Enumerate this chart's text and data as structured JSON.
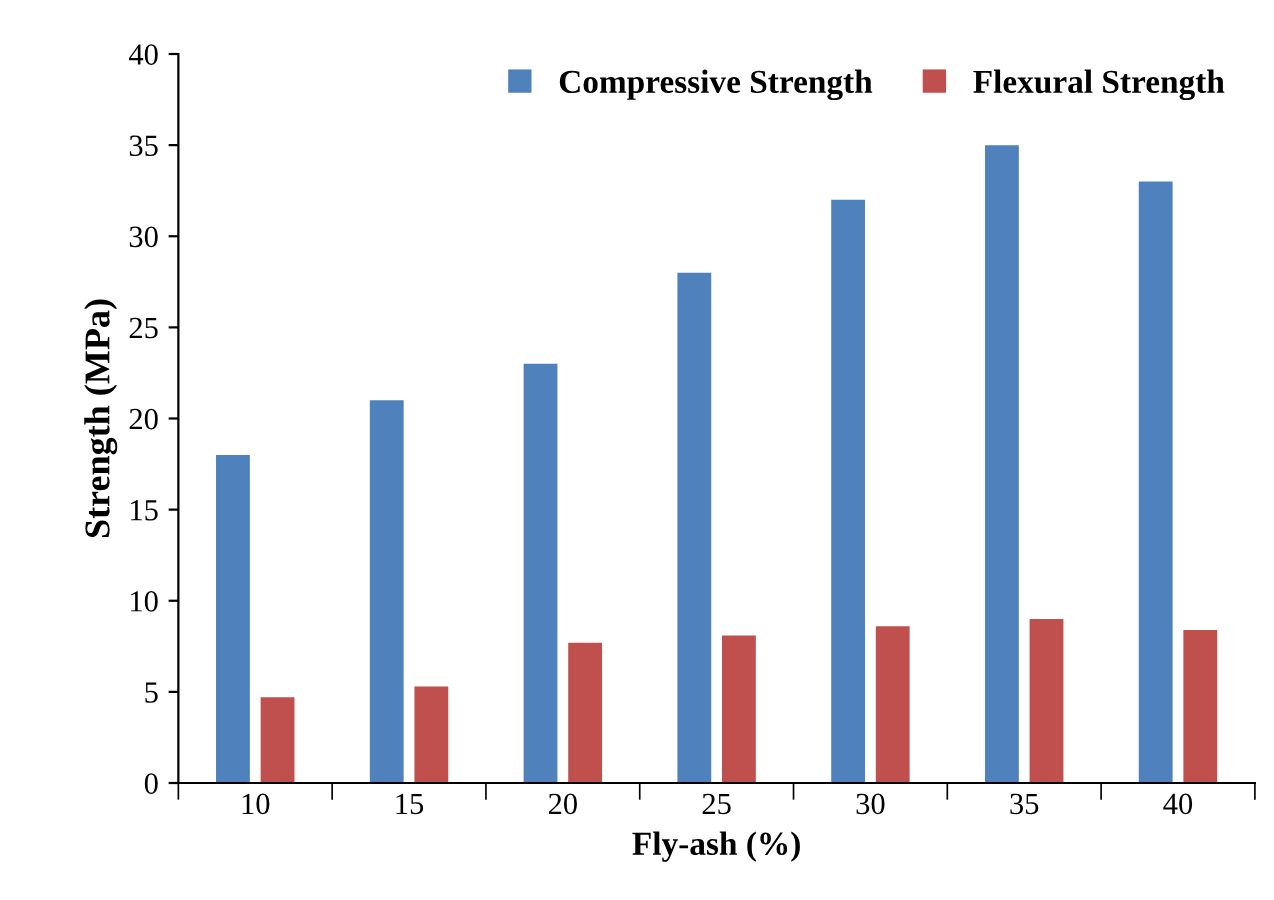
{
  "chart_data": {
    "type": "bar",
    "xlabel": "Fly-ash (%)",
    "ylabel": "Strength (MPa)",
    "categories": [
      "10",
      "15",
      "20",
      "25",
      "30",
      "35",
      "40"
    ],
    "series": [
      {
        "name": "Compressive Strength",
        "color": "#4f81bd",
        "values": [
          18,
          21,
          23,
          28,
          32,
          35,
          33
        ]
      },
      {
        "name": "Flexural Strength",
        "color": "#c0504d",
        "values": [
          4.7,
          5.3,
          7.7,
          8.1,
          8.6,
          9.0,
          8.4
        ]
      }
    ],
    "ylim": [
      0,
      40
    ],
    "yticks": [
      0,
      5,
      10,
      15,
      20,
      25,
      30,
      35,
      40
    ],
    "grid": false,
    "legend": "top right"
  }
}
